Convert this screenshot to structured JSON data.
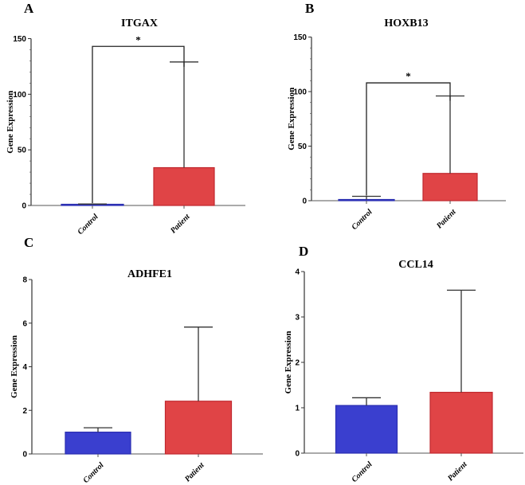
{
  "chart_data": [
    {
      "type": "bar",
      "panel": "A",
      "title": "ITGAX",
      "xlabel": "",
      "ylabel": "Gene Expression",
      "categories": [
        "Control",
        "Patient"
      ],
      "values": [
        1,
        34
      ],
      "error_upper": [
        1.3,
        129
      ],
      "ylim": [
        0,
        150
      ],
      "yticks": [
        0,
        50,
        100,
        150
      ],
      "minor_ticks": true,
      "significance": {
        "label": "*",
        "between": [
          "Control",
          "Patient"
        ],
        "y": 143
      },
      "colors": [
        "#3a3fcf",
        "#e04446"
      ],
      "grid": false
    },
    {
      "type": "bar",
      "panel": "B",
      "title": "HOXB13",
      "xlabel": "",
      "ylabel": "Gene Expression",
      "categories": [
        "Control",
        "Patient"
      ],
      "values": [
        1,
        25
      ],
      "error_upper": [
        4,
        96
      ],
      "ylim": [
        0,
        150
      ],
      "yticks": [
        0,
        50,
        100,
        150
      ],
      "minor_ticks": true,
      "significance": {
        "label": "*",
        "between": [
          "Control",
          "Patient"
        ],
        "y": 108
      },
      "colors": [
        "#3a3fcf",
        "#e04446"
      ],
      "grid": false
    },
    {
      "type": "bar",
      "panel": "C",
      "title": "ADHFE1",
      "xlabel": "",
      "ylabel": "Gene Expression",
      "categories": [
        "Control",
        "Patient"
      ],
      "values": [
        1.0,
        2.42
      ],
      "error_upper": [
        1.2,
        5.82
      ],
      "ylim": [
        0,
        8
      ],
      "yticks": [
        0,
        2,
        4,
        6,
        8
      ],
      "minor_ticks": false,
      "significance": null,
      "colors": [
        "#3a3fcf",
        "#e04446"
      ],
      "grid": false
    },
    {
      "type": "bar",
      "panel": "D",
      "title": "CCL14",
      "xlabel": "",
      "ylabel": "Gene Expression",
      "categories": [
        "Control",
        "Patient"
      ],
      "values": [
        1.05,
        1.34
      ],
      "error_upper": [
        1.22,
        3.59
      ],
      "ylim": [
        0,
        4
      ],
      "yticks": [
        0,
        1,
        2,
        3,
        4
      ],
      "minor_ticks": false,
      "significance": null,
      "colors": [
        "#3a3fcf",
        "#e04446"
      ],
      "grid": false
    }
  ]
}
